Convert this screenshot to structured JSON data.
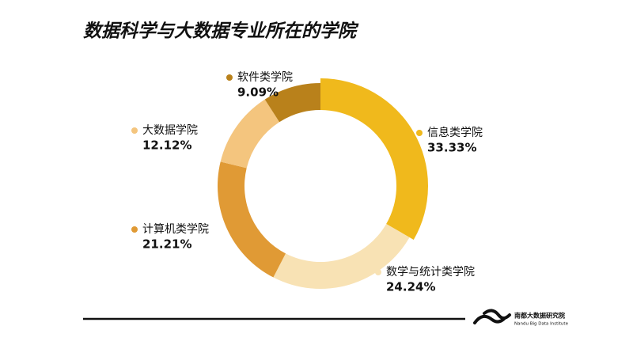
{
  "chart_data": {
    "type": "donut",
    "title": "数据科学与大数据专业所在的学院",
    "categories": [
      "信息类学院",
      "数学与统计类学院",
      "计算机类学院",
      "大数据学院",
      "软件类学院"
    ],
    "values": [
      33.33,
      24.24,
      21.21,
      12.12,
      9.09
    ],
    "value_labels": [
      "33.33%",
      "24.24%",
      "21.21%",
      "12.12%",
      "9.09%"
    ],
    "colors": [
      "#f0b91c",
      "#f8e2b4",
      "#e09a35",
      "#f4c57e",
      "#b9811b"
    ]
  },
  "footer": {
    "logo_cn": "南都大数据研究院",
    "logo_en": "Nandu Big Data Institute"
  }
}
